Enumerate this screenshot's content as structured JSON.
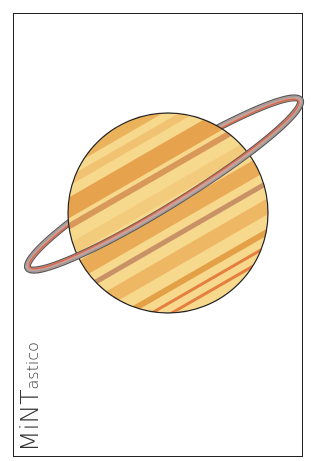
{
  "logo": {
    "prefix": "MiNT",
    "suffix": "astico"
  }
}
